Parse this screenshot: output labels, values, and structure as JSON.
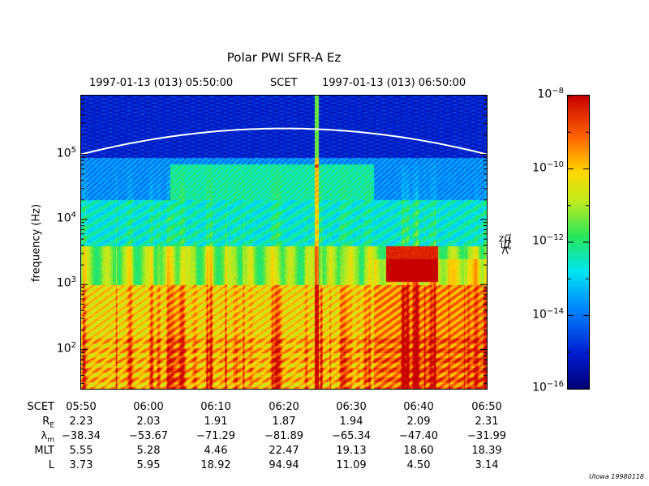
{
  "chart_data": {
    "type": "heatmap",
    "title": "Polar PWI SFR-A Ez",
    "time_range": {
      "start": "1997-01-13 (013) 05:50:00",
      "label": "SCET",
      "end": "1997-01-13 (013) 06:50:00"
    },
    "ylabel": "frequency (Hz)",
    "yscale": "log",
    "ylim": [
      25,
      800000
    ],
    "y_ticks": [
      {
        "base": "10",
        "exp": "2",
        "value": 100
      },
      {
        "base": "10",
        "exp": "3",
        "value": 1000
      },
      {
        "base": "10",
        "exp": "4",
        "value": 10000
      },
      {
        "base": "10",
        "exp": "5",
        "value": 100000
      }
    ],
    "x_ticks": [
      "05:50",
      "06:00",
      "06:10",
      "06:20",
      "06:30",
      "06:40",
      "06:50"
    ],
    "colorbar": {
      "label_parts": [
        "V",
        "2",
        " m",
        "-2",
        " Hz",
        "-1"
      ],
      "scale": "log",
      "range": [
        1e-16,
        1e-08
      ],
      "ticks": [
        {
          "base": "10",
          "exp": "−8",
          "value": 1e-08
        },
        {
          "base": "10",
          "exp": "−10",
          "value": 1e-10
        },
        {
          "base": "10",
          "exp": "−12",
          "value": 1e-12
        },
        {
          "base": "10",
          "exp": "−14",
          "value": 1e-14
        },
        {
          "base": "10",
          "exp": "−16",
          "value": 1e-16
        }
      ]
    },
    "overlay_curve": {
      "description_points": [
        [
          0,
          100000
        ],
        [
          30,
          250000
        ],
        [
          60,
          100000
        ]
      ]
    }
  },
  "ephemeris": {
    "rows": [
      {
        "label": "SCET",
        "sub": "",
        "values": [
          "05:50",
          "06:00",
          "06:10",
          "06:20",
          "06:30",
          "06:40",
          "06:50"
        ]
      },
      {
        "label": "R",
        "sub": "E",
        "values": [
          "2.23",
          "2.03",
          "1.91",
          "1.87",
          "1.94",
          "2.09",
          "2.31"
        ]
      },
      {
        "label": "λ",
        "sub": "m",
        "values": [
          "−38.34",
          "−53.67",
          "−71.29",
          "−81.89",
          "−65.34",
          "−47.40",
          "−31.99"
        ]
      },
      {
        "label": "MLT",
        "sub": "",
        "values": [
          "5.55",
          "5.28",
          "4.46",
          "22.47",
          "19.13",
          "18.60",
          "18.39"
        ]
      },
      {
        "label": "L",
        "sub": "",
        "values": [
          "3.73",
          "5.95",
          "18.92",
          "94.94",
          "11.09",
          "4.50",
          "3.14"
        ]
      }
    ]
  },
  "footer": "UIowa 19980118"
}
